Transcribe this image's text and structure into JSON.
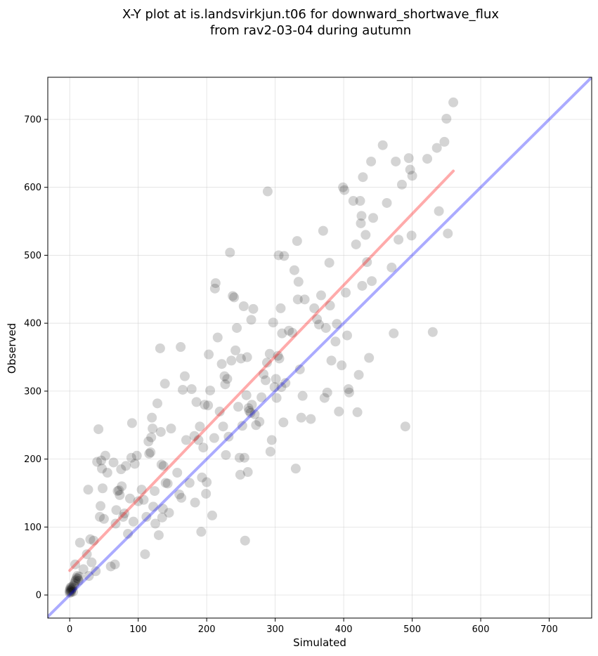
{
  "chart_data": {
    "type": "scatter",
    "title": [
      "X-Y plot at is.landsvirkjun.t06 for downward_shortwave_flux",
      "from rav2-03-04 during autumn"
    ],
    "xlabel": "Simulated",
    "ylabel": "Observed",
    "xlim": [
      -32,
      762
    ],
    "ylim": [
      -34,
      762
    ],
    "xticks": [
      0,
      100,
      200,
      300,
      400,
      500,
      600,
      700
    ],
    "yticks": [
      0,
      100,
      200,
      300,
      400,
      500,
      600,
      700
    ],
    "grid": true,
    "legend": "none",
    "series": [
      {
        "kind": "points",
        "color": "#000000",
        "opacity": 0.17,
        "points": [
          [
            0,
            3
          ],
          [
            0,
            5
          ],
          [
            0,
            7
          ],
          [
            1,
            9
          ],
          [
            1,
            11
          ],
          [
            2,
            4
          ],
          [
            2,
            6
          ],
          [
            3,
            8
          ],
          [
            3,
            12
          ],
          [
            4,
            10
          ],
          [
            5,
            5
          ],
          [
            6,
            14
          ],
          [
            7,
            17
          ],
          [
            8,
            20
          ],
          [
            9,
            22
          ],
          [
            10,
            25
          ],
          [
            11,
            28
          ],
          [
            12,
            24
          ],
          [
            13,
            21
          ],
          [
            14,
            27
          ],
          [
            8,
            45
          ],
          [
            15,
            77
          ],
          [
            20,
            38
          ],
          [
            25,
            60
          ],
          [
            27,
            155
          ],
          [
            28,
            28
          ],
          [
            30,
            82
          ],
          [
            32,
            48
          ],
          [
            35,
            80
          ],
          [
            38,
            35
          ],
          [
            40,
            196
          ],
          [
            42,
            244
          ],
          [
            44,
            115
          ],
          [
            45,
            131
          ],
          [
            46,
            198
          ],
          [
            47,
            186
          ],
          [
            48,
            157
          ],
          [
            50,
            112
          ],
          [
            52,
            205
          ],
          [
            55,
            180
          ],
          [
            60,
            42
          ],
          [
            64,
            195
          ],
          [
            66,
            45
          ],
          [
            67,
            105
          ],
          [
            68,
            125
          ],
          [
            70,
            153
          ],
          [
            72,
            154
          ],
          [
            73,
            147
          ],
          [
            75,
            185
          ],
          [
            76,
            160
          ],
          [
            78,
            115
          ],
          [
            80,
            120
          ],
          [
            82,
            190
          ],
          [
            85,
            90
          ],
          [
            88,
            142
          ],
          [
            90,
            202
          ],
          [
            91,
            253
          ],
          [
            93,
            108
          ],
          [
            95,
            193
          ],
          [
            98,
            205
          ],
          [
            100,
            138
          ],
          [
            105,
            155
          ],
          [
            108,
            140
          ],
          [
            110,
            60
          ],
          [
            112,
            115
          ],
          [
            115,
            226
          ],
          [
            116,
            208
          ],
          [
            118,
            210
          ],
          [
            119,
            232
          ],
          [
            120,
            261
          ],
          [
            121,
            245
          ],
          [
            122,
            130
          ],
          [
            124,
            153
          ],
          [
            125,
            105
          ],
          [
            128,
            282
          ],
          [
            130,
            88
          ],
          [
            132,
            363
          ],
          [
            133,
            240
          ],
          [
            134,
            192
          ],
          [
            135,
            114
          ],
          [
            136,
            127
          ],
          [
            137,
            190
          ],
          [
            139,
            311
          ],
          [
            140,
            165
          ],
          [
            143,
            164
          ],
          [
            145,
            121
          ],
          [
            148,
            245
          ],
          [
            157,
            180
          ],
          [
            160,
            148
          ],
          [
            162,
            365
          ],
          [
            163,
            143
          ],
          [
            165,
            302
          ],
          [
            168,
            322
          ],
          [
            170,
            228
          ],
          [
            175,
            165
          ],
          [
            178,
            303
          ],
          [
            182,
            234
          ],
          [
            183,
            136
          ],
          [
            185,
            284
          ],
          [
            188,
            228
          ],
          [
            190,
            248
          ],
          [
            192,
            93
          ],
          [
            193,
            173
          ],
          [
            195,
            217
          ],
          [
            197,
            280
          ],
          [
            199,
            149
          ],
          [
            200,
            166
          ],
          [
            202,
            279
          ],
          [
            203,
            354
          ],
          [
            205,
            301
          ],
          [
            208,
            117
          ],
          [
            211,
            231
          ],
          [
            212,
            451
          ],
          [
            213,
            459
          ],
          [
            216,
            379
          ],
          [
            219,
            270
          ],
          [
            222,
            340
          ],
          [
            224,
            248
          ],
          [
            226,
            322
          ],
          [
            227,
            310
          ],
          [
            228,
            206
          ],
          [
            230,
            318
          ],
          [
            232,
            233
          ],
          [
            234,
            504
          ],
          [
            236,
            345
          ],
          [
            238,
            440
          ],
          [
            240,
            438
          ],
          [
            242,
            360
          ],
          [
            244,
            393
          ],
          [
            246,
            277
          ],
          [
            248,
            202
          ],
          [
            249,
            177
          ],
          [
            250,
            348
          ],
          [
            252,
            249
          ],
          [
            254,
            425
          ],
          [
            255,
            202
          ],
          [
            256,
            80
          ],
          [
            258,
            294
          ],
          [
            259,
            350
          ],
          [
            260,
            181
          ],
          [
            261,
            275
          ],
          [
            262,
            271
          ],
          [
            264,
            268
          ],
          [
            265,
            405
          ],
          [
            266,
            280
          ],
          [
            268,
            421
          ],
          [
            270,
            266
          ],
          [
            272,
            250
          ],
          [
            277,
            255
          ],
          [
            280,
            291
          ],
          [
            283,
            325
          ],
          [
            286,
            316
          ],
          [
            288,
            342
          ],
          [
            289,
            594
          ],
          [
            292,
            355
          ],
          [
            293,
            211
          ],
          [
            295,
            228
          ],
          [
            297,
            401
          ],
          [
            299,
            306
          ],
          [
            301,
            318
          ],
          [
            302,
            290
          ],
          [
            304,
            352
          ],
          [
            305,
            500
          ],
          [
            306,
            348
          ],
          [
            308,
            422
          ],
          [
            309,
            306
          ],
          [
            310,
            385
          ],
          [
            312,
            254
          ],
          [
            313,
            499
          ],
          [
            315,
            312
          ],
          [
            320,
            389
          ],
          [
            325,
            386
          ],
          [
            328,
            478
          ],
          [
            330,
            186
          ],
          [
            332,
            521
          ],
          [
            333,
            435
          ],
          [
            334,
            461
          ],
          [
            336,
            332
          ],
          [
            338,
            261
          ],
          [
            340,
            293
          ],
          [
            343,
            435
          ],
          [
            352,
            259
          ],
          [
            357,
            422
          ],
          [
            361,
            406
          ],
          [
            364,
            398
          ],
          [
            367,
            441
          ],
          [
            370,
            536
          ],
          [
            372,
            290
          ],
          [
            374,
            393
          ],
          [
            376,
            298
          ],
          [
            379,
            489
          ],
          [
            380,
            426
          ],
          [
            382,
            345
          ],
          [
            388,
            373
          ],
          [
            390,
            399
          ],
          [
            393,
            270
          ],
          [
            397,
            338
          ],
          [
            399,
            600
          ],
          [
            401,
            596
          ],
          [
            403,
            445
          ],
          [
            405,
            382
          ],
          [
            407,
            303
          ],
          [
            408,
            298
          ],
          [
            414,
            580
          ],
          [
            418,
            516
          ],
          [
            420,
            269
          ],
          [
            422,
            324
          ],
          [
            424,
            580
          ],
          [
            425,
            547
          ],
          [
            426,
            558
          ],
          [
            427,
            455
          ],
          [
            428,
            615
          ],
          [
            432,
            530
          ],
          [
            434,
            490
          ],
          [
            437,
            349
          ],
          [
            440,
            638
          ],
          [
            441,
            462
          ],
          [
            443,
            555
          ],
          [
            457,
            662
          ],
          [
            463,
            577
          ],
          [
            470,
            482
          ],
          [
            473,
            385
          ],
          [
            476,
            638
          ],
          [
            480,
            523
          ],
          [
            485,
            604
          ],
          [
            490,
            248
          ],
          [
            495,
            643
          ],
          [
            497,
            626
          ],
          [
            499,
            529
          ],
          [
            500,
            617
          ],
          [
            522,
            642
          ],
          [
            530,
            387
          ],
          [
            536,
            658
          ],
          [
            539,
            565
          ],
          [
            547,
            667
          ],
          [
            550,
            701
          ],
          [
            552,
            532
          ],
          [
            560,
            725
          ]
        ]
      },
      {
        "kind": "line",
        "name": "",
        "color": "#ff0000",
        "opacity": 0.33,
        "from": [
          0,
          36
        ],
        "to": [
          560,
          624
        ]
      },
      {
        "kind": "line",
        "name": "",
        "color": "#0000ff",
        "opacity": 0.33,
        "from": [
          -32,
          -32
        ],
        "to": [
          762,
          762
        ]
      }
    ]
  }
}
